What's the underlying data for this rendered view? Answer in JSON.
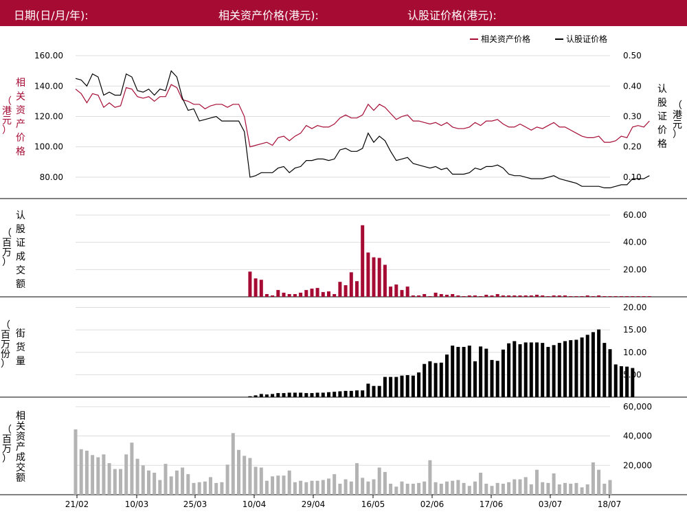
{
  "header": {
    "date_label": "日期(日/月/年):",
    "asset_price_label": "相关资产价格(港元):",
    "warrant_price_label": "认股证价格(港元):"
  },
  "colors": {
    "header_bg": "#a50b33",
    "asset": "#a50b33",
    "warrant": "#000000",
    "outstanding": "#000000",
    "asset_turnover": "#b3b3b3"
  },
  "chart_data": [
    {
      "type": "line",
      "legend": [
        "相关资产价格",
        "认股证价格"
      ],
      "legend_position": "top-right",
      "x_tick_labels": [
        "21/02",
        "10/03",
        "25/03",
        "10/04",
        "29/04",
        "16/05",
        "02/06",
        "17/06",
        "03/07",
        "18/07"
      ],
      "y_left": {
        "label": "相关资产价格（港元）",
        "ticks": [
          "160.00",
          "140.00",
          "120.00",
          "100.00",
          "80.00"
        ],
        "ylim": [
          70,
          165
        ]
      },
      "y_right": {
        "label": "认股证价格（港元）",
        "ticks": [
          "0.50",
          "0.40",
          "0.30",
          "0.20",
          "0.10"
        ],
        "ylim": [
          0.05,
          0.525
        ]
      },
      "series": [
        {
          "name": "相关资产价格",
          "axis": "left",
          "values": [
            138,
            135,
            129,
            135,
            134,
            126,
            129,
            126,
            127,
            139,
            138,
            133,
            132,
            133,
            130,
            133,
            133,
            141,
            139,
            131,
            130,
            128,
            128,
            125,
            127,
            128,
            128,
            126,
            128,
            128,
            120,
            100,
            101,
            102,
            103,
            101,
            106,
            107,
            104,
            107,
            109,
            114,
            112,
            114,
            113,
            113,
            115,
            119,
            121,
            119,
            119,
            121,
            128,
            124,
            128,
            126,
            122,
            118,
            120,
            121,
            117,
            117,
            116,
            115,
            116,
            114,
            116,
            113,
            112,
            112,
            113,
            116,
            114,
            117,
            117,
            118,
            115,
            113,
            113,
            115,
            113,
            111,
            113,
            112,
            114,
            116,
            113,
            113,
            111,
            109,
            107,
            106,
            106,
            107,
            103,
            103,
            104,
            107,
            106,
            113,
            114,
            113,
            117
          ]
        },
        {
          "name": "认股证价格",
          "axis": "right",
          "values": [
            0.425,
            0.42,
            0.4,
            0.44,
            0.43,
            0.37,
            0.38,
            0.37,
            0.37,
            0.44,
            0.43,
            0.385,
            0.38,
            0.39,
            0.37,
            0.39,
            0.385,
            0.45,
            0.43,
            0.36,
            0.32,
            0.325,
            0.285,
            0.29,
            0.295,
            0.3,
            0.285,
            0.285,
            0.285,
            0.285,
            0.25,
            0.1,
            0.105,
            0.115,
            0.115,
            0.115,
            0.13,
            0.135,
            0.115,
            0.13,
            0.135,
            0.155,
            0.155,
            0.16,
            0.16,
            0.155,
            0.16,
            0.19,
            0.195,
            0.185,
            0.185,
            0.195,
            0.245,
            0.215,
            0.235,
            0.22,
            0.185,
            0.155,
            0.16,
            0.165,
            0.145,
            0.14,
            0.135,
            0.13,
            0.135,
            0.125,
            0.13,
            0.11,
            0.11,
            0.11,
            0.115,
            0.13,
            0.125,
            0.135,
            0.135,
            0.14,
            0.13,
            0.11,
            0.105,
            0.105,
            0.1,
            0.095,
            0.095,
            0.095,
            0.1,
            0.105,
            0.095,
            0.09,
            0.085,
            0.08,
            0.07,
            0.07,
            0.07,
            0.07,
            0.065,
            0.065,
            0.07,
            0.075,
            0.075,
            0.095,
            0.095,
            0.095,
            0.105
          ]
        }
      ]
    },
    {
      "type": "bar",
      "ylabel": "认股证成交额（百万）",
      "y_ticks": [
        "60.00",
        "40.00",
        "20.00"
      ],
      "ylim": [
        0,
        64
      ],
      "start_index": 31,
      "values": [
        18.5,
        13.5,
        12.5,
        2,
        1,
        5,
        3,
        2,
        2,
        3,
        5,
        6,
        6.5,
        3.5,
        4,
        2,
        11,
        8.5,
        18,
        11.5,
        52.5,
        32.5,
        29,
        28.5,
        23.5,
        7.5,
        9,
        5,
        7.5,
        1,
        1,
        2,
        0.5,
        3,
        2,
        1.5,
        2,
        1,
        0.5,
        1,
        1,
        0.5,
        1.5,
        1,
        2,
        1,
        1,
        1,
        1,
        1,
        1,
        1.5,
        1,
        0.5,
        1,
        1,
        1,
        0.5,
        0.5,
        0.5,
        1,
        0.5,
        1,
        0.5,
        0.5,
        0.5,
        0.5,
        0.5,
        0.5,
        0.5,
        0.5,
        0.5
      ]
    },
    {
      "type": "bar",
      "ylabel": "街货量（百万份）",
      "y_ticks": [
        "20.00",
        "15.00",
        "10.00",
        "5.00"
      ],
      "ylim": [
        0,
        21
      ],
      "start_index": 31,
      "values": [
        0.2,
        0.4,
        0.7,
        0.6,
        0.7,
        0.9,
        0.9,
        1,
        1,
        1,
        0.9,
        0.9,
        1,
        1,
        1.1,
        1.2,
        1.3,
        1.4,
        1.4,
        1.5,
        1.5,
        3,
        2.5,
        2.5,
        4.5,
        4.5,
        4.5,
        4.8,
        4.9,
        4.8,
        5.5,
        7.4,
        8,
        7.6,
        7.7,
        9.5,
        11.5,
        11.2,
        11.2,
        11.5,
        8,
        11.3,
        10.8,
        8.3,
        8.1,
        10.6,
        12,
        12.5,
        11.8,
        12.2,
        12.2,
        12.2,
        12.1,
        11.2,
        11.6,
        12.1,
        12.5,
        12.7,
        12.8,
        13.3,
        13.9,
        14.5,
        15.1,
        12.1,
        10.7,
        7.3,
        6.9,
        6.8,
        6.5
      ]
    },
    {
      "type": "bar",
      "ylabel": "相关资产成交额（百万）",
      "y_ticks": [
        "60,000",
        "40,000",
        "20,000"
      ],
      "ylim": [
        0,
        66000
      ],
      "start_index": 0,
      "values": [
        44500,
        31000,
        30000,
        27000,
        25500,
        27500,
        21500,
        17500,
        17500,
        27500,
        35500,
        24500,
        20000,
        16500,
        15000,
        10000,
        21000,
        12500,
        16500,
        18500,
        14000,
        8000,
        8500,
        9000,
        12000,
        8000,
        8500,
        20500,
        42000,
        30500,
        26500,
        25000,
        19000,
        18500,
        9500,
        12500,
        13000,
        13000,
        16500,
        8500,
        9500,
        8500,
        9500,
        9500,
        10000,
        11000,
        14000,
        7500,
        10500,
        9000,
        21500,
        11500,
        9000,
        10500,
        18500,
        15500,
        7500,
        5500,
        9000,
        7500,
        7500,
        8000,
        9000,
        23500,
        8500,
        7500,
        9000,
        9500,
        10000,
        8000,
        6000,
        9000,
        15000,
        7500,
        6000,
        8000,
        7500,
        8500,
        10500,
        10500,
        12000,
        7000,
        17000,
        8500,
        8000,
        14500,
        7000,
        8000,
        7500,
        8000,
        5000,
        7000,
        22000,
        17000,
        7500,
        10000
      ]
    }
  ]
}
